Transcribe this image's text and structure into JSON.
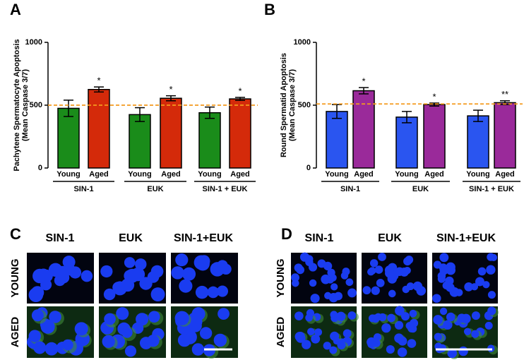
{
  "chart_data": [
    {
      "type": "bar",
      "panel_label": "A",
      "ylabel": [
        "Pachytene Spermatocyte Apoptosis",
        "(Mean Caspase 3/7)"
      ],
      "categories": [
        "Young",
        "Aged",
        "Young",
        "Aged",
        "Young",
        "Aged"
      ],
      "groups": [
        "SIN-1",
        "EUK",
        "SIN-1 + EUK"
      ],
      "values": [
        475,
        625,
        425,
        555,
        440,
        550
      ],
      "errors": [
        65,
        20,
        55,
        20,
        45,
        12
      ],
      "colors": [
        "#1a8c1a",
        "#d42a0a",
        "#1a8c1a",
        "#d42a0a",
        "#1a8c1a",
        "#d42a0a"
      ],
      "annotations": [
        null,
        "*",
        null,
        "*",
        null,
        "*"
      ],
      "reference_line": 500,
      "reference_color": "#f39a1e",
      "ylim": [
        0,
        1000
      ],
      "yticks": [
        0,
        500,
        1000
      ]
    },
    {
      "type": "bar",
      "panel_label": "B",
      "ylabel": [
        "Round Spermatid Apoptosis",
        "(Mean Caspase 3/7)"
      ],
      "categories": [
        "Young",
        "Aged",
        "Young",
        "Aged",
        "Young",
        "Aged"
      ],
      "groups": [
        "SIN-1",
        "EUK",
        "SIN-1 + EUK"
      ],
      "values": [
        450,
        615,
        405,
        505,
        415,
        520
      ],
      "errors": [
        55,
        25,
        45,
        12,
        45,
        15
      ],
      "colors": [
        "#2a55f0",
        "#9a2a9a",
        "#2a55f0",
        "#9a2a9a",
        "#2a55f0",
        "#9a2a9a"
      ],
      "annotations": [
        null,
        "*",
        null,
        "*",
        null,
        "**"
      ],
      "reference_line": 510,
      "reference_color": "#f39a1e",
      "ylim": [
        0,
        1000
      ],
      "yticks": [
        0,
        500,
        1000
      ]
    }
  ],
  "image_panels": [
    {
      "panel_label": "C",
      "columns": [
        "SIN-1",
        "EUK",
        "SIN-1+EUK"
      ],
      "rows": [
        "YOUNG",
        "AGED"
      ]
    },
    {
      "panel_label": "D",
      "columns": [
        "SIN-1",
        "EUK",
        "SIN-1+EUK"
      ],
      "rows": [
        "YOUNG",
        "AGED"
      ]
    }
  ]
}
